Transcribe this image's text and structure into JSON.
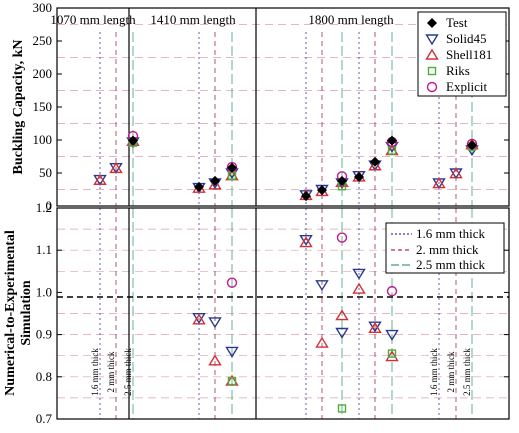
{
  "colors": {
    "test": "#000000",
    "solid45": "#2b3a8f",
    "shell181": "#d0303a",
    "riks": "#4caf3c",
    "explicit": "#c01890",
    "t16": "#3a3a9a",
    "t2": "#a03048",
    "t25": "#40a070",
    "grid": "#d9a0b0"
  },
  "chart_data": [
    {
      "type": "scatter",
      "ylabel": "Buckling Capacity, kN",
      "ylim": [
        0,
        300
      ],
      "yticks": [
        "0",
        "50",
        "100",
        "150",
        "200",
        "250",
        "300"
      ],
      "grid": true,
      "legend_position": "top-right",
      "groups": [
        {
          "label": "1070 mm length",
          "positions": [
            {
              "thickness": "1.6 mm thick",
              "values": {
                "solid45": 40,
                "shell181": 39
              }
            },
            {
              "thickness": "2 mm thick",
              "values": {
                "solid45": 58,
                "shell181": 57
              }
            },
            {
              "thickness": "2.5 mm thick",
              "values": {
                "test": 99,
                "solid45": 97,
                "shell181": 98,
                "riks": 96,
                "explicit": 106
              }
            }
          ]
        },
        {
          "label": "1410 mm length",
          "positions": [
            {
              "thickness": "1.6 mm thick",
              "values": {
                "test": 29,
                "solid45": 28,
                "shell181": 27
              }
            },
            {
              "thickness": "2 mm thick",
              "values": {
                "test": 38,
                "solid45": 35,
                "shell181": 32
              }
            },
            {
              "thickness": "2.5 mm thick",
              "values": {
                "test": 58,
                "solid45": 50,
                "shell181": 46,
                "riks": 46,
                "explicit": 59
              }
            }
          ]
        },
        {
          "label": "1800 mm length",
          "positions": [
            {
              "thickness": "1.6 mm thick",
              "values": {
                "test": 15,
                "solid45": 17,
                "shell181": 16
              }
            },
            {
              "thickness": "2 mm thick",
              "values": {
                "test": 24,
                "solid45": 25,
                "shell181": 22
              }
            },
            {
              "thickness": "2.5 mm thick",
              "values": {
                "test": 38,
                "solid45": 35,
                "shell181": 36,
                "riks": 30,
                "explicit": 45
              }
            },
            {
              "thickness": "1.6 mm thick",
              "values": {
                "test": 44,
                "solid45": 46,
                "shell181": 44
              }
            },
            {
              "thickness": "2 mm thick",
              "values": {
                "test": 67,
                "solid45": 62,
                "shell181": 61
              }
            },
            {
              "thickness": "2.5 mm thick",
              "values": {
                "test": 99,
                "solid45": 90,
                "shell181": 84,
                "riks": 84,
                "explicit": 97
              }
            },
            {
              "thickness": "1.6 mm thick",
              "values": {
                "solid45": 35,
                "shell181": 34
              }
            },
            {
              "thickness": "2 mm thick",
              "values": {
                "solid45": 50,
                "shell181": 49
              }
            },
            {
              "thickness": "2.5 mm thick",
              "values": {
                "test": 92,
                "solid45": 85,
                "shell181": 93,
                "riks": 90,
                "explicit": 94
              }
            }
          ]
        }
      ],
      "series": [
        {
          "key": "test",
          "name": "Test",
          "marker": "filled-diamond"
        },
        {
          "key": "solid45",
          "name": "Solid45",
          "marker": "down-triangle"
        },
        {
          "key": "shell181",
          "name": "Shell181",
          "marker": "up-triangle"
        },
        {
          "key": "riks",
          "name": "Riks",
          "marker": "square"
        },
        {
          "key": "explicit",
          "name": "Explicit",
          "marker": "circle"
        }
      ]
    },
    {
      "type": "scatter",
      "ylabel_lines": [
        "Numerical-to-Experimental",
        "Simulation"
      ],
      "ylim": [
        0.7,
        1.2
      ],
      "yticks": [
        "0.7",
        "0.8",
        "0.9",
        "1.0",
        "1.1",
        "1.2"
      ],
      "reference_line": 1.0,
      "grid": true,
      "legend_position": "top-right",
      "legend": [
        "1.6 mm thick",
        "2. mm thick",
        "2.5 mm thick"
      ],
      "thickness_labels": [
        "1.6 mm thick",
        "2 mm thick",
        "2.5 mm thick"
      ],
      "points": [
        {
          "position": 4,
          "series": "solid45",
          "value": 0.94
        },
        {
          "position": 4,
          "series": "shell181",
          "value": 0.935
        },
        {
          "position": 5,
          "series": "solid45",
          "value": 0.93
        },
        {
          "position": 5,
          "series": "shell181",
          "value": 0.838
        },
        {
          "position": 6,
          "series": "solid45",
          "value": 0.86
        },
        {
          "position": 6,
          "series": "shell181",
          "value": 0.79
        },
        {
          "position": 6,
          "series": "riks",
          "value": 0.79
        },
        {
          "position": 6,
          "series": "explicit",
          "value": 1.023
        },
        {
          "position": 7,
          "series": "solid45",
          "value": 1.125
        },
        {
          "position": 7,
          "series": "shell181",
          "value": 1.118
        },
        {
          "position": 8,
          "series": "solid45",
          "value": 1.018
        },
        {
          "position": 8,
          "series": "shell181",
          "value": 0.88
        },
        {
          "position": 9,
          "series": "solid45",
          "value": 0.905
        },
        {
          "position": 9,
          "series": "shell181",
          "value": 0.945
        },
        {
          "position": 9,
          "series": "riks",
          "value": 0.725
        },
        {
          "position": 9,
          "series": "explicit",
          "value": 1.13
        },
        {
          "position": 10,
          "series": "solid45",
          "value": 1.045
        },
        {
          "position": 10,
          "series": "shell181",
          "value": 1.008
        },
        {
          "position": 11,
          "series": "solid45",
          "value": 0.92
        },
        {
          "position": 11,
          "series": "shell181",
          "value": 0.915
        },
        {
          "position": 12,
          "series": "solid45",
          "value": 0.9
        },
        {
          "position": 12,
          "series": "shell181",
          "value": 0.848
        },
        {
          "position": 12,
          "series": "riks",
          "value": 0.855
        },
        {
          "position": 12,
          "series": "explicit",
          "value": 1.003
        }
      ]
    }
  ]
}
